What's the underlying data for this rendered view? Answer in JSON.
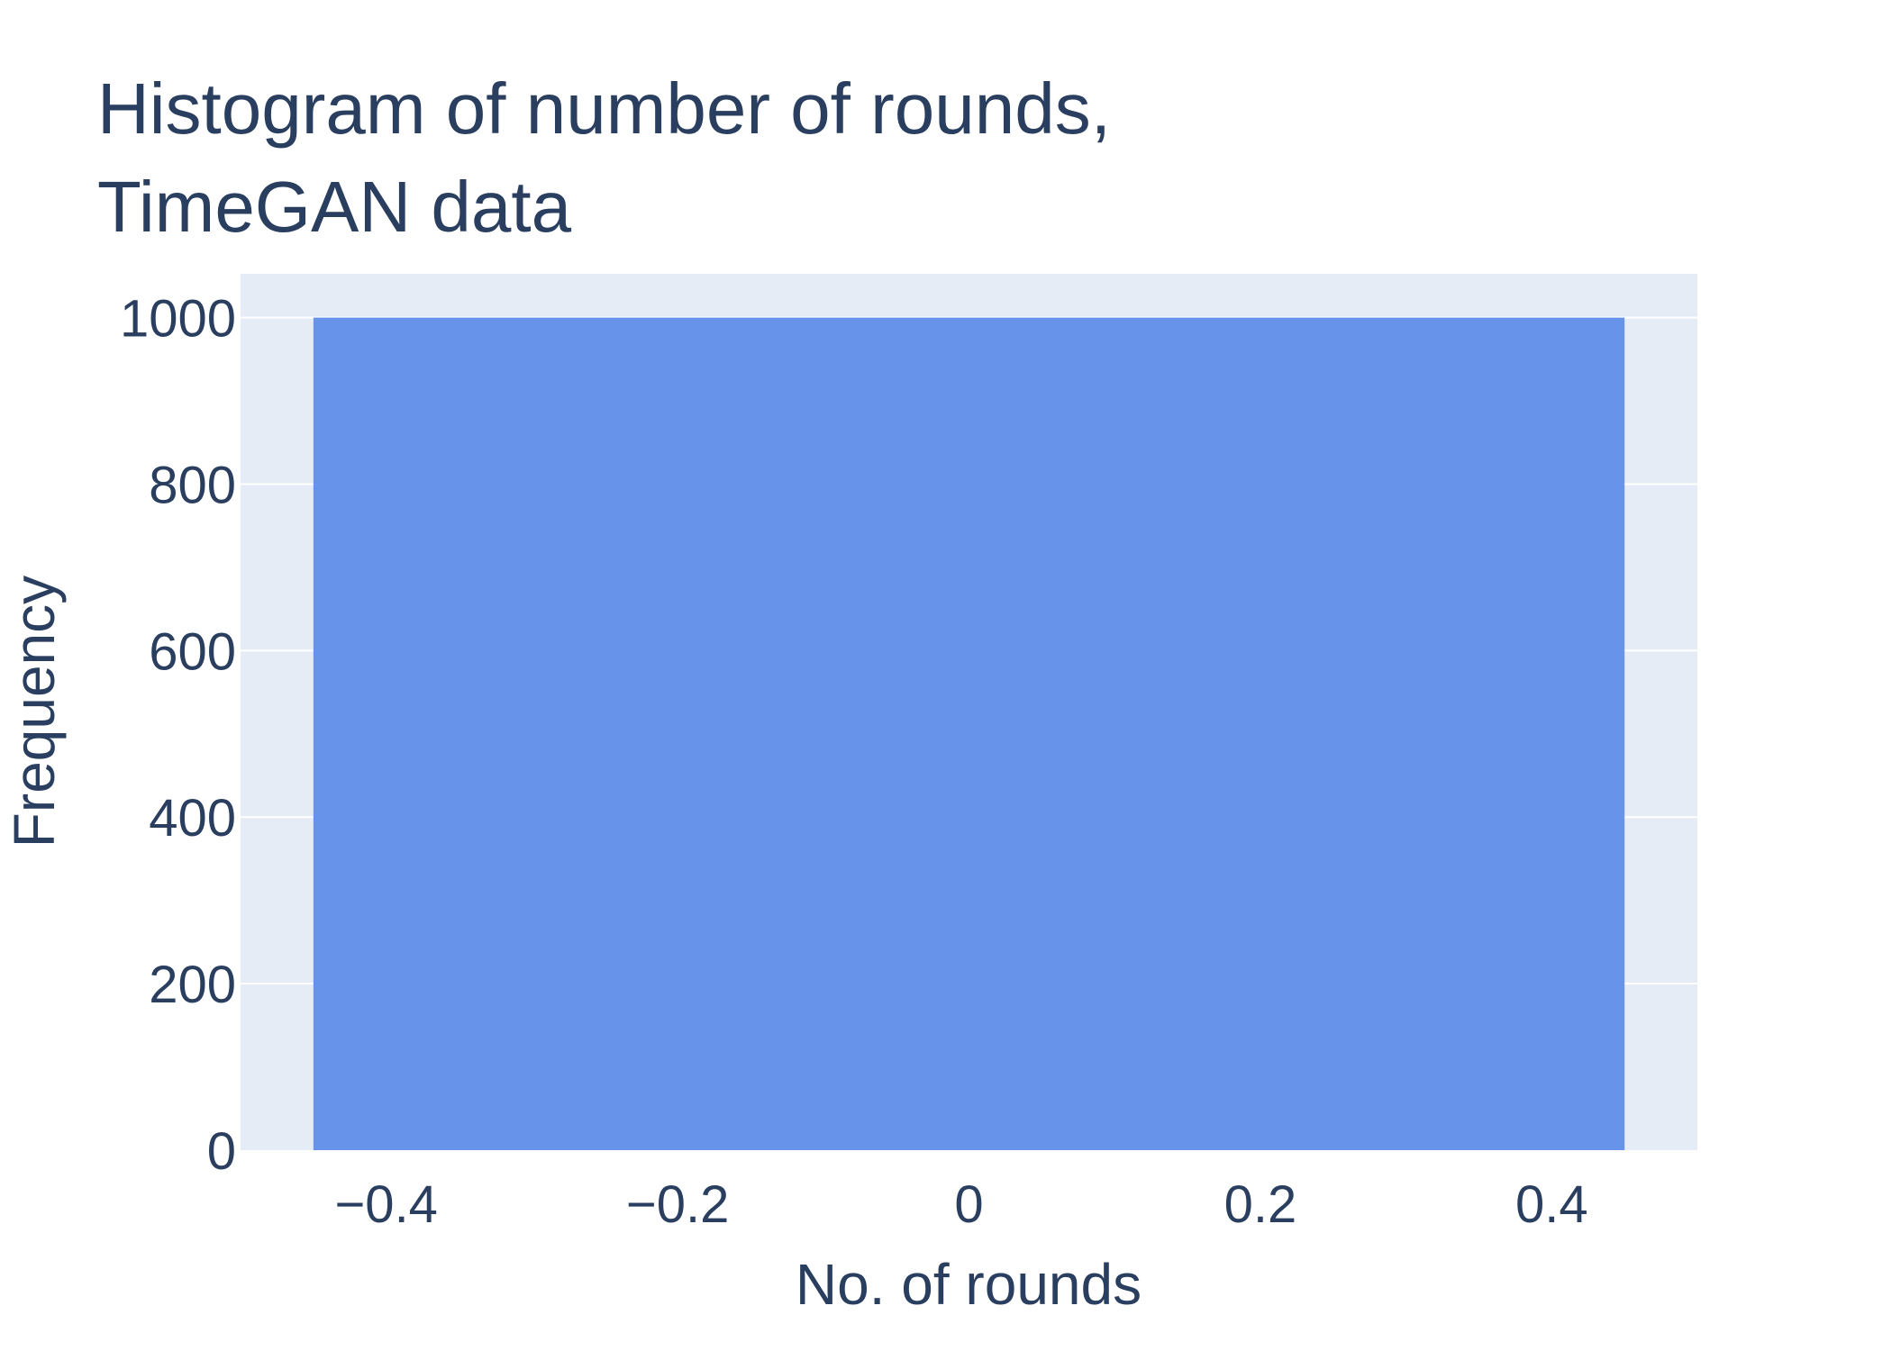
{
  "chart_data": {
    "type": "bar",
    "title": "Histogram of number of rounds, TimeGAN data",
    "title_lines": [
      "Histogram of number of rounds,",
      "TimeGAN data"
    ],
    "xlabel": "No. of rounds",
    "ylabel": "Frequency",
    "bins": [
      {
        "x0": -0.45,
        "x1": 0.45,
        "value": 1000
      }
    ],
    "xlim": [
      -0.5,
      0.5
    ],
    "ylim": [
      0,
      1052.6
    ],
    "xticks": [
      -0.4,
      -0.2,
      0,
      0.2,
      0.4
    ],
    "xtick_labels": [
      "−0.4",
      "−0.2",
      "0",
      "0.2",
      "0.4"
    ],
    "yticks": [
      0,
      200,
      400,
      600,
      800,
      1000
    ],
    "ytick_labels": [
      "0",
      "200",
      "400",
      "600",
      "800",
      "1000"
    ],
    "grid": true,
    "colors": {
      "bar": "#6794ea",
      "plot_bg": "#e5ecf6",
      "grid": "#ffffff",
      "text": "#2a3f5f"
    }
  }
}
